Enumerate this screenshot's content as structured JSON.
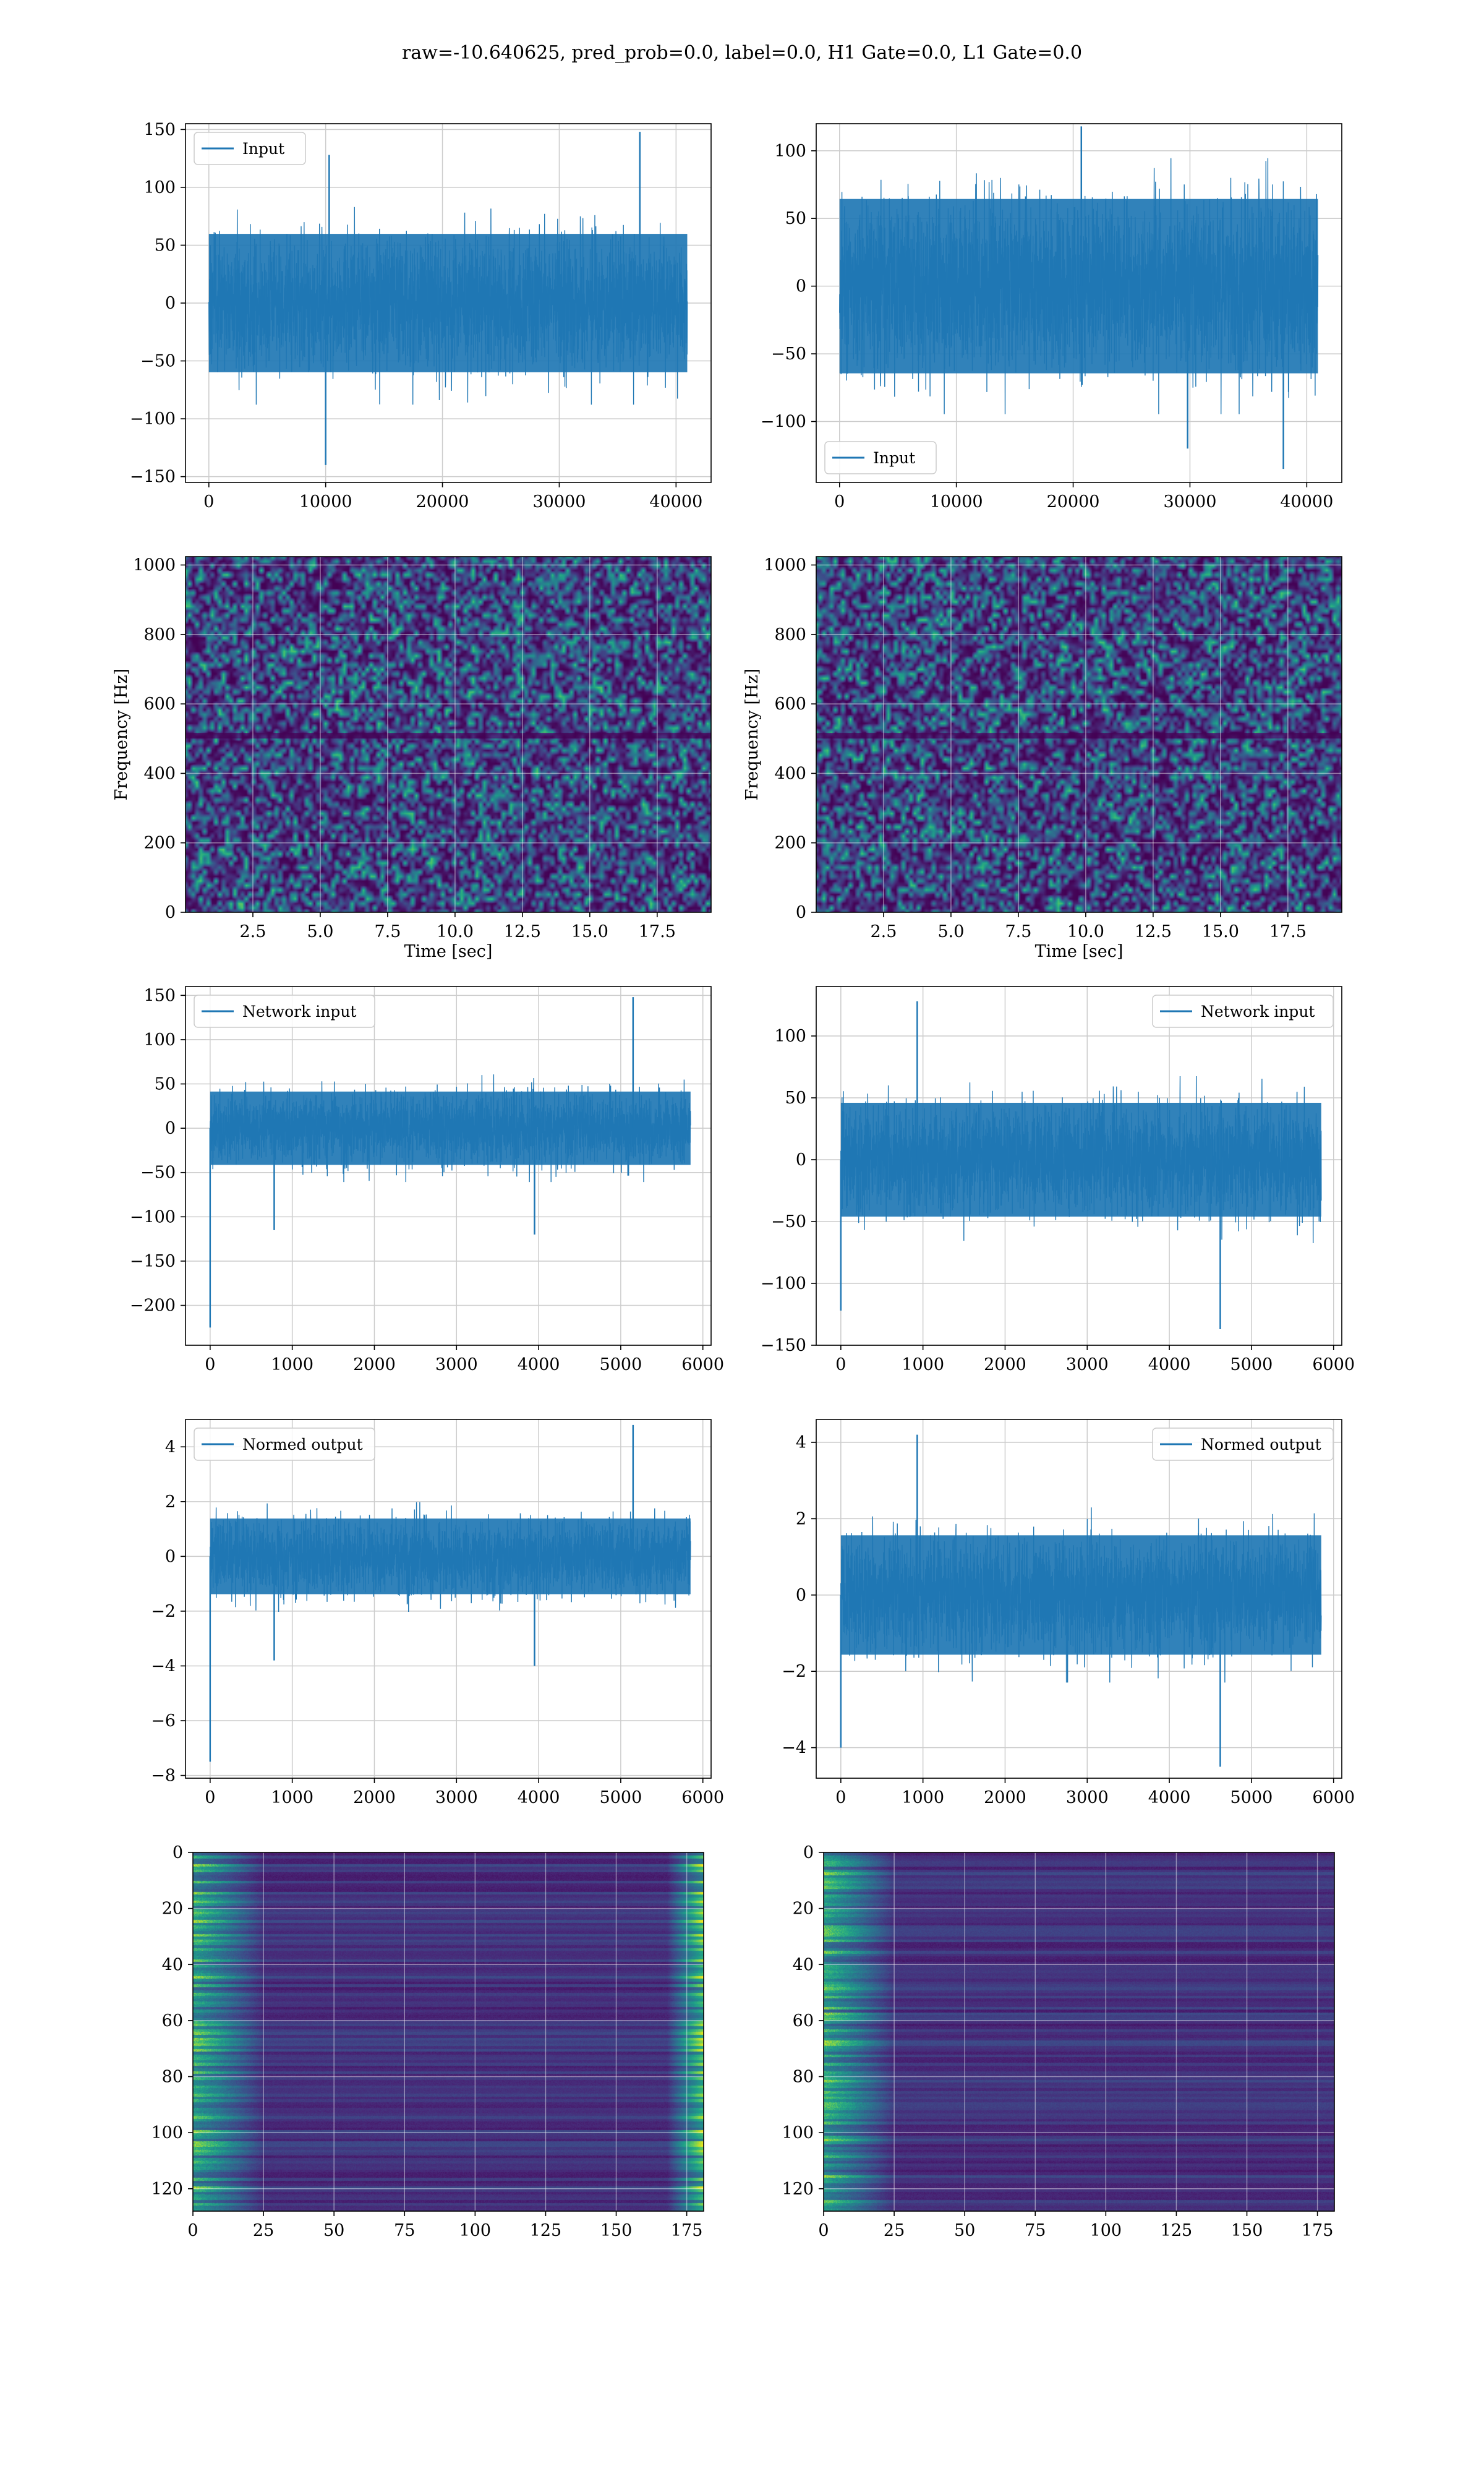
{
  "figure": {
    "suptitle": "raw=-10.640625, pred_prob=0.0, label=0.0, H1 Gate=0.0, L1 Gate=0.0"
  },
  "chart_data": [
    {
      "id": "input-h1",
      "type": "line",
      "title": "",
      "xlabel": "",
      "ylabel": "",
      "xlim": [
        -2000,
        43000
      ],
      "ylim": [
        -155,
        155
      ],
      "xticks": [
        0,
        10000,
        20000,
        30000,
        40000
      ],
      "xticklabels": [
        "0",
        "10000",
        "20000",
        "30000",
        "40000"
      ],
      "yticks": [
        -150,
        -100,
        -50,
        0,
        50,
        100,
        150
      ],
      "yticklabels": [
        "−150",
        "−100",
        "−50",
        "0",
        "50",
        "100",
        "150"
      ],
      "grid": true,
      "legend_loc": "upper-left",
      "series": [
        {
          "name": "Input",
          "color": "#1f77b4",
          "n_points": 40960,
          "x_start": 0,
          "x_end": 40960,
          "typical_max": 65,
          "typical_min": -65,
          "peaks": [
            {
              "x": 10300,
              "y": 128
            },
            {
              "x": 36900,
              "y": 148
            },
            {
              "x": 10000,
              "y": -140
            }
          ]
        }
      ]
    },
    {
      "id": "input-l1",
      "type": "line",
      "title": "",
      "xlabel": "",
      "ylabel": "",
      "xlim": [
        -2000,
        43000
      ],
      "ylim": [
        -145,
        120
      ],
      "xticks": [
        0,
        10000,
        20000,
        30000,
        40000
      ],
      "xticklabels": [
        "0",
        "10000",
        "20000",
        "30000",
        "40000"
      ],
      "yticks": [
        -100,
        -50,
        0,
        50,
        100
      ],
      "yticklabels": [
        "−100",
        "−50",
        "0",
        "50",
        "100"
      ],
      "grid": true,
      "legend_loc": "lower-left",
      "series": [
        {
          "name": "Input",
          "color": "#1f77b4",
          "n_points": 40960,
          "x_start": 0,
          "x_end": 40960,
          "typical_max": 70,
          "typical_min": -70,
          "peaks": [
            {
              "x": 20700,
              "y": 118
            },
            {
              "x": 29800,
              "y": -120
            },
            {
              "x": 38000,
              "y": -135
            }
          ]
        }
      ]
    },
    {
      "id": "spec-h1",
      "type": "heatmap",
      "title": "",
      "xlabel": "Time [sec]",
      "ylabel": "Frequency [Hz]",
      "xlim": [
        0,
        19.5
      ],
      "ylim": [
        0,
        1024
      ],
      "xticks": [
        2.5,
        5.0,
        7.5,
        10.0,
        12.5,
        15.0,
        17.5
      ],
      "xticklabels": [
        "2.5",
        "5.0",
        "7.5",
        "10.0",
        "12.5",
        "15.0",
        "17.5"
      ],
      "yticks": [
        0,
        200,
        400,
        600,
        800,
        1000
      ],
      "yticklabels": [
        "0",
        "200",
        "400",
        "600",
        "800",
        "1000"
      ],
      "grid": true,
      "colormap": "viridis",
      "dark_band_hz": 510
    },
    {
      "id": "spec-l1",
      "type": "heatmap",
      "title": "",
      "xlabel": "Time [sec]",
      "ylabel": "Frequency [Hz]",
      "xlim": [
        0,
        19.5
      ],
      "ylim": [
        0,
        1024
      ],
      "xticks": [
        2.5,
        5.0,
        7.5,
        10.0,
        12.5,
        15.0,
        17.5
      ],
      "xticklabels": [
        "2.5",
        "5.0",
        "7.5",
        "10.0",
        "12.5",
        "15.0",
        "17.5"
      ],
      "yticks": [
        0,
        200,
        400,
        600,
        800,
        1000
      ],
      "yticklabels": [
        "0",
        "200",
        "400",
        "600",
        "800",
        "1000"
      ],
      "grid": true,
      "colormap": "viridis",
      "dark_band_hz": 510
    },
    {
      "id": "network-h1",
      "type": "line",
      "title": "",
      "xlabel": "",
      "ylabel": "",
      "xlim": [
        -300,
        6100
      ],
      "ylim": [
        -245,
        160
      ],
      "xticks": [
        0,
        1000,
        2000,
        3000,
        4000,
        5000,
        6000
      ],
      "xticklabels": [
        "0",
        "1000",
        "2000",
        "3000",
        "4000",
        "5000",
        "6000"
      ],
      "yticks": [
        -200,
        -150,
        -100,
        -50,
        0,
        50,
        100,
        150
      ],
      "yticklabels": [
        "−200",
        "−150",
        "−100",
        "−50",
        "0",
        "50",
        "100",
        "150"
      ],
      "grid": true,
      "legend_loc": "upper-left",
      "series": [
        {
          "name": "Network input",
          "color": "#1f77b4",
          "n_points": 5850,
          "x_start": 0,
          "x_end": 5850,
          "typical_max": 45,
          "typical_min": -45,
          "peaks": [
            {
              "x": 0,
              "y": -225
            },
            {
              "x": 5150,
              "y": 148
            },
            {
              "x": 3950,
              "y": -120
            },
            {
              "x": 780,
              "y": -115
            }
          ]
        }
      ]
    },
    {
      "id": "network-l1",
      "type": "line",
      "title": "",
      "xlabel": "",
      "ylabel": "",
      "xlim": [
        -300,
        6100
      ],
      "ylim": [
        -150,
        140
      ],
      "xticks": [
        0,
        1000,
        2000,
        3000,
        4000,
        5000,
        6000
      ],
      "xticklabels": [
        "0",
        "1000",
        "2000",
        "3000",
        "4000",
        "5000",
        "6000"
      ],
      "yticks": [
        -150,
        -100,
        -50,
        0,
        50,
        100
      ],
      "yticklabels": [
        "−150",
        "−100",
        "−50",
        "0",
        "50",
        "100"
      ],
      "grid": true,
      "legend_loc": "upper-right",
      "series": [
        {
          "name": "Network input",
          "color": "#1f77b4",
          "n_points": 5850,
          "x_start": 0,
          "x_end": 5850,
          "typical_max": 50,
          "typical_min": -50,
          "peaks": [
            {
              "x": 930,
              "y": 128
            },
            {
              "x": 4620,
              "y": -137
            },
            {
              "x": 0,
              "y": -122
            }
          ]
        }
      ]
    },
    {
      "id": "normed-h1",
      "type": "line",
      "title": "",
      "xlabel": "",
      "ylabel": "",
      "xlim": [
        -300,
        6100
      ],
      "ylim": [
        -8.1,
        5.0
      ],
      "xticks": [
        0,
        1000,
        2000,
        3000,
        4000,
        5000,
        6000
      ],
      "xticklabels": [
        "0",
        "1000",
        "2000",
        "3000",
        "4000",
        "5000",
        "6000"
      ],
      "yticks": [
        -8,
        -6,
        -4,
        -2,
        0,
        2,
        4
      ],
      "yticklabels": [
        "−8",
        "−6",
        "−4",
        "−2",
        "0",
        "2",
        "4"
      ],
      "grid": true,
      "legend_loc": "upper-left",
      "series": [
        {
          "name": "Normed output",
          "color": "#1f77b4",
          "n_points": 5850,
          "x_start": 0,
          "x_end": 5850,
          "typical_max": 1.5,
          "typical_min": -1.5,
          "peaks": [
            {
              "x": 0,
              "y": -7.5
            },
            {
              "x": 5150,
              "y": 4.8
            },
            {
              "x": 3950,
              "y": -4.0
            },
            {
              "x": 780,
              "y": -3.8
            }
          ]
        }
      ]
    },
    {
      "id": "normed-l1",
      "type": "line",
      "title": "",
      "xlabel": "",
      "ylabel": "",
      "xlim": [
        -300,
        6100
      ],
      "ylim": [
        -4.8,
        4.6
      ],
      "xticks": [
        0,
        1000,
        2000,
        3000,
        4000,
        5000,
        6000
      ],
      "xticklabels": [
        "0",
        "1000",
        "2000",
        "3000",
        "4000",
        "5000",
        "6000"
      ],
      "yticks": [
        -4,
        -2,
        0,
        2,
        4
      ],
      "yticklabels": [
        "−4",
        "−2",
        "0",
        "2",
        "4"
      ],
      "grid": true,
      "legend_loc": "upper-right",
      "series": [
        {
          "name": "Normed output",
          "color": "#1f77b4",
          "n_points": 5850,
          "x_start": 0,
          "x_end": 5850,
          "typical_max": 1.7,
          "typical_min": -1.7,
          "peaks": [
            {
              "x": 930,
              "y": 4.2
            },
            {
              "x": 4620,
              "y": -4.5
            },
            {
              "x": 0,
              "y": -4.0
            }
          ]
        }
      ]
    },
    {
      "id": "feat-h1",
      "type": "heatmap",
      "title": "",
      "xlabel": "",
      "ylabel": "",
      "xlim": [
        0,
        181
      ],
      "ylim": [
        128,
        0
      ],
      "xticks": [
        0,
        25,
        50,
        75,
        100,
        125,
        150,
        175
      ],
      "xticklabels": [
        "0",
        "25",
        "50",
        "75",
        "100",
        "125",
        "150",
        "175"
      ],
      "yticks": [
        0,
        20,
        40,
        60,
        80,
        100,
        120
      ],
      "yticklabels": [
        "0",
        "20",
        "40",
        "60",
        "80",
        "100",
        "120"
      ],
      "grid": true,
      "colormap": "viridis",
      "rows": 128,
      "cols": 181
    },
    {
      "id": "feat-l1",
      "type": "heatmap",
      "title": "",
      "xlabel": "",
      "ylabel": "",
      "xlim": [
        0,
        181
      ],
      "ylim": [
        128,
        0
      ],
      "xticks": [
        0,
        25,
        50,
        75,
        100,
        125,
        150,
        175
      ],
      "xticklabels": [
        "0",
        "25",
        "50",
        "75",
        "100",
        "125",
        "150",
        "175"
      ],
      "yticks": [
        0,
        20,
        40,
        60,
        80,
        100,
        120
      ],
      "yticklabels": [
        "0",
        "20",
        "40",
        "60",
        "80",
        "100",
        "120"
      ],
      "grid": true,
      "colormap": "viridis",
      "rows": 128,
      "cols": 181
    }
  ]
}
